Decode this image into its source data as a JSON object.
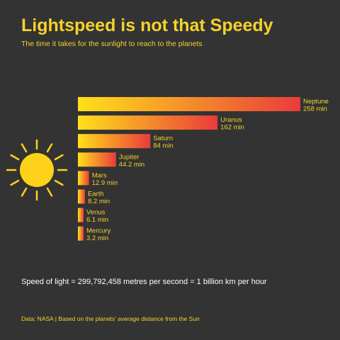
{
  "title": "Lightspeed is not that Speedy",
  "subtitle": "The time it takes for the sunlight to reach to the planets",
  "footnote": "Speed of light = 299,792,458 metres per second = 1 billion km per hour",
  "source": "Data: NASA | Based on the planets' average distance from the Sun",
  "colors": {
    "background": "#333333",
    "accent": "#f5d32a",
    "bar_start": "#ffe01a",
    "bar_end": "#ea3b3b",
    "sun": "#ffd21a"
  },
  "chart_data": {
    "type": "bar",
    "orientation": "horizontal",
    "categories": [
      "Neptune",
      "Uranus",
      "Saturn",
      "Jupiter",
      "Mars",
      "Earth",
      "Venus",
      "Mercury"
    ],
    "values": [
      258,
      162,
      84,
      44.2,
      12.9,
      8.2,
      6.1,
      3.2
    ],
    "value_labels": [
      "258 min",
      "162 min",
      "84 min",
      "44.2 min",
      "12.9 min",
      "8.2 min",
      "6.1 min",
      "3.2 min"
    ],
    "unit": "min",
    "legend": "none",
    "grid": false
  }
}
